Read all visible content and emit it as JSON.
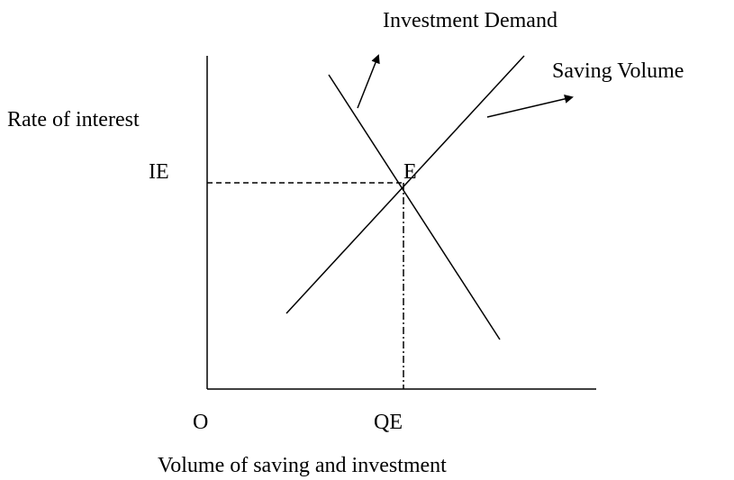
{
  "labels": {
    "investment_demand": "Investment Demand",
    "saving_volume": "Saving Volume",
    "y_axis": "Rate of interest",
    "equilibrium_rate": "IE",
    "equilibrium_point": "E",
    "origin": "O",
    "equilibrium_quantity": "QE",
    "x_axis": "Volume of saving and investment"
  }
}
